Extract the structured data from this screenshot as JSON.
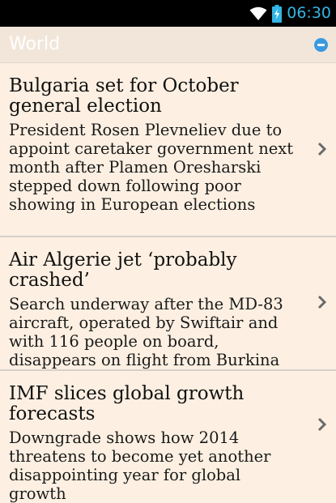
{
  "status_bar": {
    "time": "06:30",
    "wifi_icon": "wifi-icon",
    "battery_icon": "battery-charging-icon",
    "accent_color": "#33b5e5"
  },
  "section": {
    "title": "World",
    "collapse_icon": "minus-circle-icon",
    "collapse_color": "#3a9ae0"
  },
  "articles": [
    {
      "headline": "Bulgaria set for October general election",
      "summary": "President Rosen Plevneliev due to appoint caretaker government next month after Plamen Oresharski stepped down following poor showing in European elections"
    },
    {
      "headline": "Air Algerie jet ‘probably crashed’",
      "summary": "Search underway after the MD-83 aircraft, operated by Swiftair and with 116 people on board, disappears on flight from Burkina Faso to Algeria"
    },
    {
      "headline": "IMF slices global growth forecasts",
      "summary": "Downgrade shows how 2014 threatens to become yet another disappointing year for global growth"
    }
  ]
}
